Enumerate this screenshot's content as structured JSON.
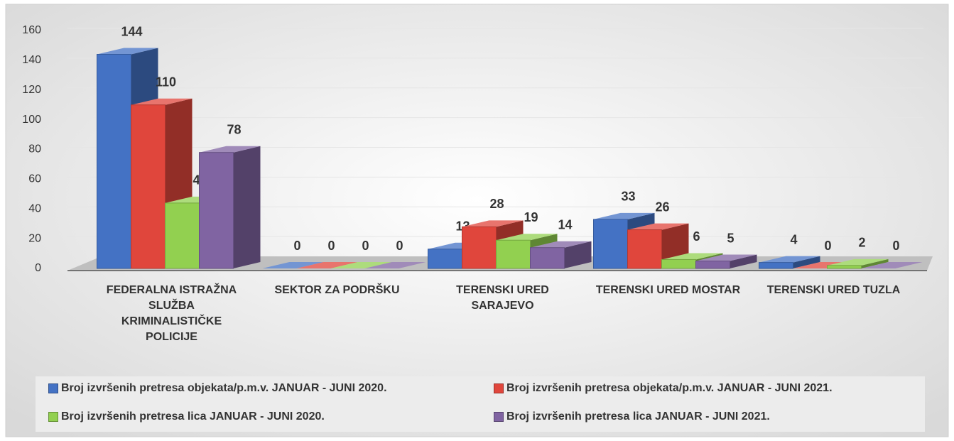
{
  "chart_data": {
    "type": "bar3d",
    "categories": [
      "FEDERALNA ISTRAŽNA SLUŽBA KRIMINALISTIČKE POLICIJE",
      "SEKTOR ZA PODRŠKU",
      "TERENSKI URED SARAJEVO",
      "TERENSKI URED MOSTAR",
      "TERENSKI URED TUZLA"
    ],
    "series": [
      {
        "name": "Broj izvršenih pretresa objekata/p.m.v. JANUAR - JUNI 2020.",
        "color": "#4472c4",
        "values": [
          144,
          0,
          13,
          33,
          4
        ]
      },
      {
        "name": "Broj izvršenih pretresa objekata/p.m.v. JANUAR - JUNI 2021.",
        "color": "#e0463c",
        "values": [
          110,
          0,
          28,
          26,
          0
        ]
      },
      {
        "name": "Broj izvršenih pretresa lica JANUAR - JUNI 2020.",
        "color": "#92d050",
        "values": [
          44,
          0,
          19,
          6,
          2
        ]
      },
      {
        "name": "Broj izvršenih pretresa lica JANUAR - JUNI 2021.",
        "color": "#8064a2",
        "values": [
          78,
          0,
          14,
          5,
          0
        ]
      }
    ],
    "ylim": [
      0,
      160
    ],
    "yticks": [
      0,
      20,
      40,
      60,
      80,
      100,
      120,
      140,
      160
    ],
    "grid": true,
    "legend": "bottom"
  }
}
